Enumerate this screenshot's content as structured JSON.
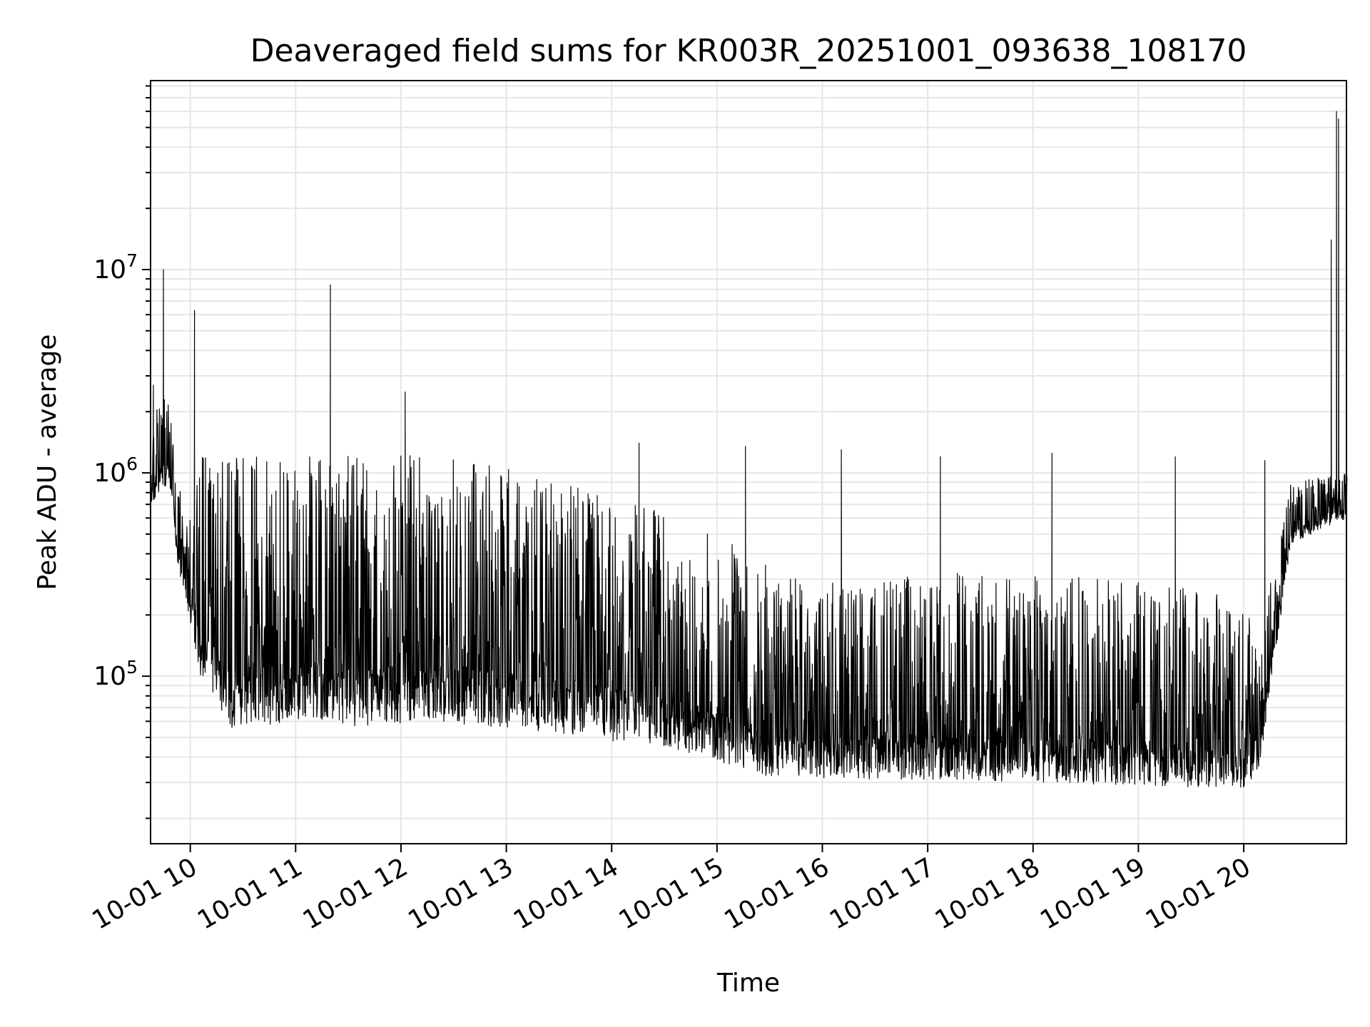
{
  "chart_data": {
    "type": "line",
    "title": "Deaveraged field sums for KR003R_20251001_093638_108170",
    "xlabel": "Time",
    "ylabel": "Peak ADU - average",
    "yscale": "log",
    "ylim": [
      15000,
      85000000
    ],
    "xlim_hours": [
      9.623,
      20.975
    ],
    "grid": true,
    "line_color": "#000000",
    "grid_color": "#e6e6e6",
    "x_ticks": [
      {
        "hour": 10,
        "label": "10-01 10"
      },
      {
        "hour": 11,
        "label": "10-01 11"
      },
      {
        "hour": 12,
        "label": "10-01 12"
      },
      {
        "hour": 13,
        "label": "10-01 13"
      },
      {
        "hour": 14,
        "label": "10-01 14"
      },
      {
        "hour": 15,
        "label": "10-01 15"
      },
      {
        "hour": 16,
        "label": "10-01 16"
      },
      {
        "hour": 17,
        "label": "10-01 17"
      },
      {
        "hour": 18,
        "label": "10-01 18"
      },
      {
        "hour": 19,
        "label": "10-01 19"
      },
      {
        "hour": 20,
        "label": "10-01 20"
      }
    ],
    "y_ticks": [
      {
        "value": 100000,
        "base": "10",
        "exp": "5"
      },
      {
        "value": 1000000,
        "base": "10",
        "exp": "6"
      },
      {
        "value": 10000000,
        "base": "10",
        "exp": "7"
      }
    ],
    "envelope": [
      {
        "hour": 9.62,
        "low": 700000,
        "high": 2000000
      },
      {
        "hour": 9.8,
        "low": 900000,
        "high": 2400000
      },
      {
        "hour": 9.88,
        "low": 350000,
        "high": 900000
      },
      {
        "hour": 10.0,
        "low": 180000,
        "high": 600000
      },
      {
        "hour": 10.1,
        "low": 100000,
        "high": 1200000
      },
      {
        "hour": 10.4,
        "low": 55000,
        "high": 1250000
      },
      {
        "hour": 11.0,
        "low": 60000,
        "high": 1250000
      },
      {
        "hour": 11.6,
        "low": 55000,
        "high": 1250000
      },
      {
        "hour": 12.3,
        "low": 60000,
        "high": 1200000
      },
      {
        "hour": 13.0,
        "low": 55000,
        "high": 1100000
      },
      {
        "hour": 13.6,
        "low": 52000,
        "high": 900000
      },
      {
        "hour": 14.0,
        "low": 48000,
        "high": 800000
      },
      {
        "hour": 14.5,
        "low": 45000,
        "high": 650000
      },
      {
        "hour": 15.0,
        "low": 38000,
        "high": 500000
      },
      {
        "hour": 15.5,
        "low": 32000,
        "high": 350000
      },
      {
        "hour": 16.0,
        "low": 31000,
        "high": 300000
      },
      {
        "hour": 17.0,
        "low": 31000,
        "high": 320000
      },
      {
        "hour": 18.0,
        "low": 30000,
        "high": 330000
      },
      {
        "hour": 19.0,
        "low": 29000,
        "high": 300000
      },
      {
        "hour": 20.0,
        "low": 28000,
        "high": 260000
      },
      {
        "hour": 20.15,
        "low": 35000,
        "high": 180000
      },
      {
        "hour": 20.3,
        "low": 130000,
        "high": 400000
      },
      {
        "hour": 20.45,
        "low": 450000,
        "high": 900000
      },
      {
        "hour": 20.98,
        "low": 600000,
        "high": 1000000
      }
    ],
    "spikes": [
      {
        "hour": 9.745,
        "value": 10000000
      },
      {
        "hour": 10.04,
        "value": 6300000
      },
      {
        "hour": 11.33,
        "value": 8400000
      },
      {
        "hour": 12.04,
        "value": 2500000
      },
      {
        "hour": 9.65,
        "value": 2700000
      },
      {
        "hour": 14.26,
        "value": 1400000
      },
      {
        "hour": 15.27,
        "value": 1350000
      },
      {
        "hour": 16.18,
        "value": 1300000
      },
      {
        "hour": 17.12,
        "value": 1200000
      },
      {
        "hour": 18.18,
        "value": 1250000
      },
      {
        "hour": 19.35,
        "value": 1200000
      },
      {
        "hour": 20.2,
        "value": 1150000
      },
      {
        "hour": 20.83,
        "value": 14000000
      },
      {
        "hour": 20.88,
        "value": 60000000
      },
      {
        "hour": 20.9,
        "value": 55000000
      }
    ]
  }
}
